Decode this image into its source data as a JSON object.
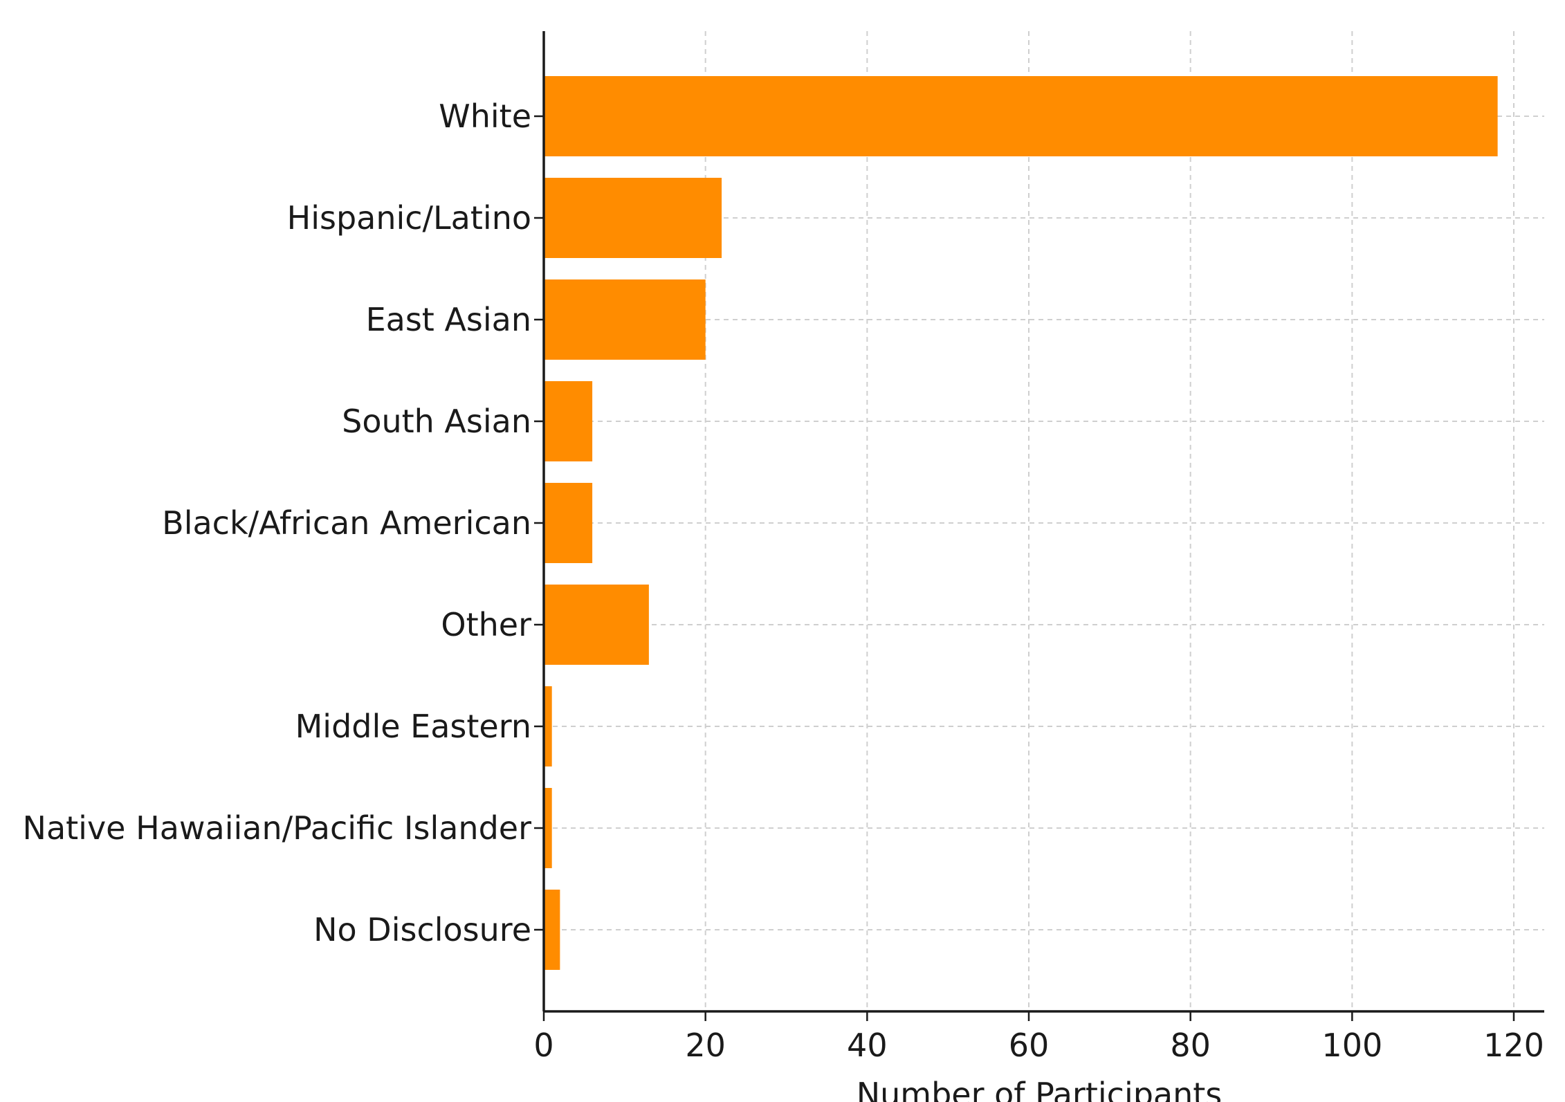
{
  "chart_data": {
    "type": "bar",
    "orientation": "horizontal",
    "categories": [
      "White",
      "Hispanic/Latino",
      "East Asian",
      "South Asian",
      "Black/African American",
      "Other",
      "Middle Eastern",
      "Native Hawaiian/Pacific Islander",
      "No Disclosure"
    ],
    "values": [
      118,
      22,
      20,
      6,
      6,
      13,
      1,
      1,
      2
    ],
    "xlabel": "Number of Participants",
    "ylabel": "",
    "title": "",
    "xlim": [
      0,
      120
    ],
    "xticks": [
      0,
      20,
      40,
      60,
      80,
      100,
      120
    ],
    "grid": true,
    "bar_color": "#FF8C00"
  }
}
